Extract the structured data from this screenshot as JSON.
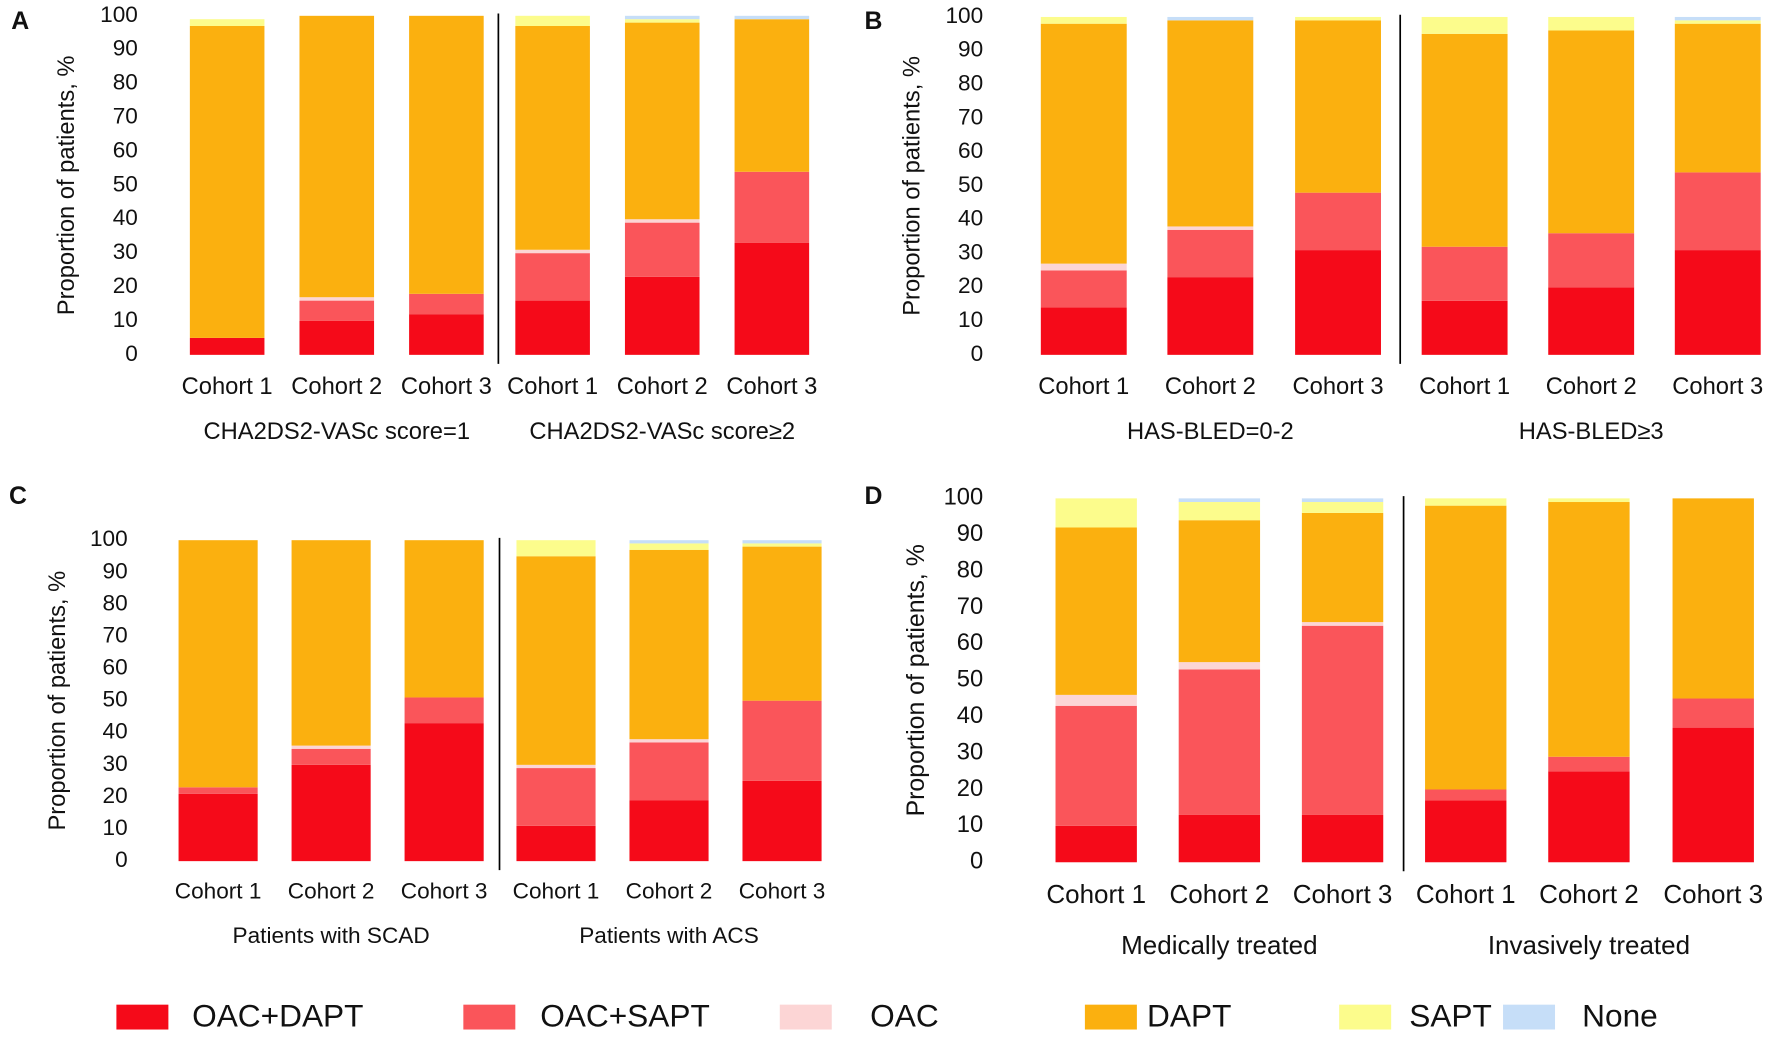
{
  "chart_data": [
    {
      "type": "bar",
      "stacked": true,
      "panel": "A",
      "ylabel": "Proportion of patients, %",
      "ylim": [
        0,
        100
      ],
      "yticks": [
        0,
        10,
        20,
        30,
        40,
        50,
        60,
        70,
        80,
        90,
        100
      ],
      "categories": [
        "Cohort 1",
        "Cohort 2",
        "Cohort 3",
        "Cohort 1",
        "Cohort 2",
        "Cohort 3"
      ],
      "groups": [
        "CHA2DS2-VASc score=1",
        "CHA2DS2-VASc score≥2"
      ],
      "series": [
        {
          "name": "OAC+DAPT",
          "color": "#f50a19",
          "values": [
            5,
            10,
            12,
            16,
            23,
            33
          ]
        },
        {
          "name": "OAC+SAPT",
          "color": "#fa555a",
          "values": [
            0,
            6,
            6,
            14,
            16,
            21
          ]
        },
        {
          "name": "OAC",
          "color": "#fcd5d5",
          "values": [
            0,
            1,
            0,
            1,
            1,
            0
          ]
        },
        {
          "name": "DAPT",
          "color": "#fbb00f",
          "values": [
            92,
            83,
            82,
            66,
            58,
            45
          ]
        },
        {
          "name": "SAPT",
          "color": "#fcfc8c",
          "values": [
            2,
            0,
            0,
            3,
            1,
            0
          ]
        },
        {
          "name": "None",
          "color": "#c6def8",
          "values": [
            0,
            0,
            0,
            0,
            1,
            1
          ]
        }
      ]
    },
    {
      "type": "bar",
      "stacked": true,
      "panel": "B",
      "ylabel": "Proportion of patients, %",
      "ylim": [
        0,
        100
      ],
      "yticks": [
        0,
        10,
        20,
        30,
        40,
        50,
        60,
        70,
        80,
        90,
        100
      ],
      "categories": [
        "Cohort 1",
        "Cohort 2",
        "Cohort 3",
        "Cohort 1",
        "Cohort 2",
        "Cohort 3"
      ],
      "groups": [
        "HAS-BLED=0-2",
        "HAS-BLED≥3"
      ],
      "series": [
        {
          "color": "#f50a19",
          "values": [
            14,
            23,
            31,
            16,
            20,
            31
          ]
        },
        {
          "color": "#fa555a",
          "values": [
            11,
            14,
            17,
            16,
            16,
            23
          ]
        },
        {
          "color": "#fcd5d5",
          "values": [
            2,
            1,
            0,
            0,
            0,
            0
          ]
        },
        {
          "color": "#fbb00f",
          "values": [
            71,
            61,
            51,
            63,
            60,
            44
          ]
        },
        {
          "color": "#fcfc8c",
          "values": [
            2,
            0,
            1,
            5,
            4,
            1
          ]
        },
        {
          "color": "#c6def8",
          "values": [
            0,
            1,
            0,
            0,
            0,
            1
          ]
        }
      ]
    },
    {
      "type": "bar",
      "stacked": true,
      "panel": "C",
      "ylabel": "Proportion of patients, %",
      "ylim": [
        0,
        100
      ],
      "yticks": [
        0,
        10,
        20,
        30,
        40,
        50,
        60,
        70,
        80,
        90,
        100
      ],
      "categories": [
        "Cohort 1",
        "Cohort 2",
        "Cohort 3",
        "Cohort 1",
        "Cohort 2",
        "Cohort 3"
      ],
      "groups": [
        "Patients with SCAD",
        "Patients with ACS"
      ],
      "series": [
        {
          "color": "#f50a19",
          "values": [
            21,
            30,
            43,
            11,
            19,
            25
          ]
        },
        {
          "color": "#fa555a",
          "values": [
            2,
            5,
            8,
            18,
            18,
            25
          ]
        },
        {
          "color": "#fcd5d5",
          "values": [
            0,
            1,
            0,
            1,
            1,
            0
          ]
        },
        {
          "color": "#fbb00f",
          "values": [
            77,
            64,
            49,
            65,
            59,
            48
          ]
        },
        {
          "color": "#fcfc8c",
          "values": [
            0,
            0,
            0,
            5,
            2,
            1
          ]
        },
        {
          "color": "#c6def8",
          "values": [
            0,
            0,
            0,
            0,
            1,
            1
          ]
        }
      ]
    },
    {
      "type": "bar",
      "stacked": true,
      "panel": "D",
      "ylabel": "Proportion of patients, %",
      "ylim": [
        0,
        100
      ],
      "yticks": [
        0,
        10,
        20,
        30,
        40,
        50,
        60,
        70,
        80,
        90,
        100
      ],
      "categories": [
        "Cohort 1",
        "Cohort 2",
        "Cohort 3",
        "Cohort 1",
        "Cohort 2",
        "Cohort 3"
      ],
      "groups": [
        "Medically treated",
        "Invasively treated"
      ],
      "series": [
        {
          "color": "#f50a19",
          "values": [
            10,
            13,
            13,
            17,
            25,
            37
          ]
        },
        {
          "color": "#fa555a",
          "values": [
            33,
            40,
            52,
            3,
            4,
            8
          ]
        },
        {
          "color": "#fcd5d5",
          "values": [
            3,
            2,
            1,
            0,
            0,
            0
          ]
        },
        {
          "color": "#fbb00f",
          "values": [
            46,
            39,
            30,
            78,
            70,
            55
          ]
        },
        {
          "color": "#fcfc8c",
          "values": [
            8,
            5,
            3,
            2,
            1,
            0
          ]
        },
        {
          "color": "#c6def8",
          "values": [
            0,
            1,
            1,
            0,
            0,
            0
          ]
        }
      ]
    }
  ]
}
